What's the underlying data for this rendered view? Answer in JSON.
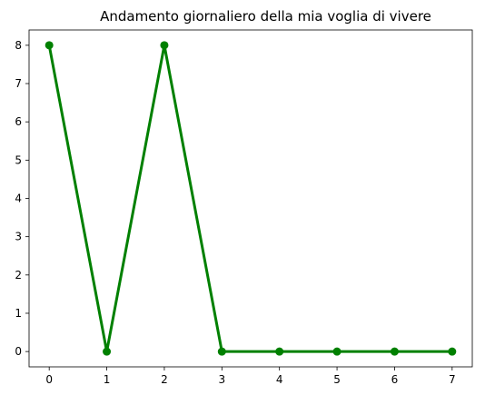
{
  "chart_data": {
    "type": "line",
    "title": "Andamento giornaliero della mia voglia di vivere",
    "xlabel": "",
    "ylabel": "",
    "x": [
      0,
      1,
      2,
      3,
      4,
      5,
      6,
      7
    ],
    "series": [
      {
        "values": [
          8,
          0,
          8,
          0,
          0,
          0,
          0,
          0
        ],
        "color": "#008000",
        "marker": "circle"
      }
    ],
    "xlim": [
      -0.35,
      7.35
    ],
    "ylim": [
      -0.4,
      8.4
    ],
    "xticks": [
      0,
      1,
      2,
      3,
      4,
      5,
      6,
      7
    ],
    "yticks": [
      0,
      1,
      2,
      3,
      4,
      5,
      6,
      7,
      8
    ],
    "grid": false,
    "legend": false
  }
}
